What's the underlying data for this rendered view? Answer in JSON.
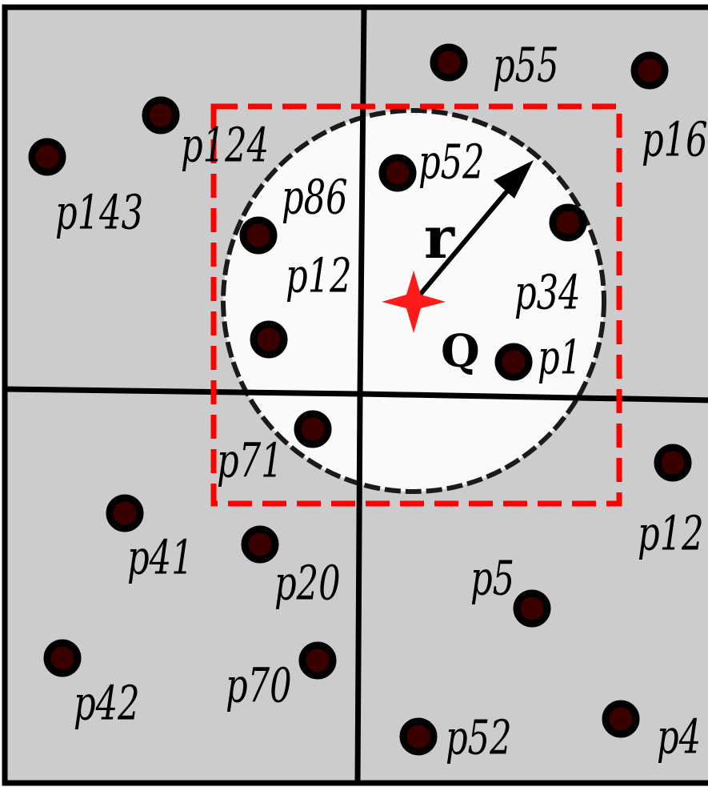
{
  "diagram": {
    "colors": {
      "cell_fill": "#cccccc",
      "grid_line": "#000000",
      "query_circle_fill": "#fafafa",
      "query_box": "#ff0000",
      "point_outer": "#000000",
      "point_inner": "#3a0000",
      "query_star": "#ff1a1a"
    },
    "query": {
      "label": "Q",
      "radius_label": "r"
    },
    "points": [
      {
        "label": "p55"
      },
      {
        "label": "p16"
      },
      {
        "label": "p124"
      },
      {
        "label": "p143"
      },
      {
        "label": "p52"
      },
      {
        "label": "p86"
      },
      {
        "label": "p12"
      },
      {
        "label": "p34"
      },
      {
        "label": "p1"
      },
      {
        "label": "p71"
      },
      {
        "label": "p12"
      },
      {
        "label": "p41"
      },
      {
        "label": "p20"
      },
      {
        "label": "p5"
      },
      {
        "label": "p42"
      },
      {
        "label": "p70"
      },
      {
        "label": "p52"
      },
      {
        "label": "p4"
      }
    ]
  }
}
